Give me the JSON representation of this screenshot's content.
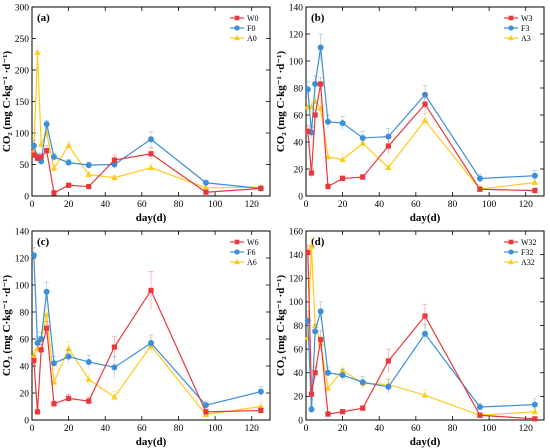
{
  "figure": {
    "xlabel": "day(d)",
    "ylabel": "CO₂ (mg C·kg⁻¹ ·d⁻¹)"
  },
  "chart_data": [
    {
      "type": "line",
      "panel_label": "(a)",
      "xlabel": "day(d)",
      "ylabel": "CO₂ (mg C·kg⁻¹ ·d⁻¹)",
      "xlim": [
        0,
        130
      ],
      "ylim": [
        0,
        300
      ],
      "xticks": [
        0,
        20,
        40,
        60,
        80,
        100,
        120
      ],
      "yticks": [
        0,
        50,
        100,
        150,
        200,
        250,
        300
      ],
      "legend_position": "top-right",
      "x": [
        1,
        3,
        5,
        8,
        12,
        20,
        31,
        45,
        65,
        95,
        125
      ],
      "series": [
        {
          "name": "W0",
          "color": "#e8383d",
          "marker": "square",
          "values": [
            65,
            60,
            62,
            72,
            5,
            17,
            15,
            57,
            67,
            6,
            12
          ],
          "errors": [
            6,
            6,
            6,
            8,
            2,
            3,
            3,
            8,
            10,
            3,
            3
          ]
        },
        {
          "name": "F0",
          "color": "#3d8fd8",
          "marker": "circle",
          "values": [
            80,
            62,
            55,
            114,
            62,
            53,
            49,
            50,
            90,
            21,
            12
          ],
          "errors": [
            8,
            6,
            6,
            6,
            6,
            5,
            5,
            6,
            12,
            4,
            4
          ]
        },
        {
          "name": "A0",
          "color": "#ffcc1a",
          "marker": "triangle",
          "values": [
            72,
            228,
            82,
            100,
            44,
            80,
            34,
            29,
            45,
            13,
            14
          ],
          "errors": [
            6,
            10,
            8,
            8,
            6,
            6,
            5,
            4,
            6,
            3,
            3
          ]
        }
      ]
    },
    {
      "type": "line",
      "panel_label": "(b)",
      "xlabel": "day(d)",
      "ylabel": "CO₂ (mg C·kg⁻¹ ·d⁻¹)",
      "xlim": [
        0,
        130
      ],
      "ylim": [
        0,
        140
      ],
      "xticks": [
        0,
        20,
        40,
        60,
        80,
        100,
        120
      ],
      "yticks": [
        0,
        20,
        40,
        60,
        80,
        100,
        120,
        140
      ],
      "legend_position": "top-right",
      "x": [
        1,
        3,
        5,
        8,
        12,
        20,
        31,
        45,
        65,
        95,
        125
      ],
      "series": [
        {
          "name": "W3",
          "color": "#e8383d",
          "marker": "square",
          "values": [
            48,
            17,
            60,
            83,
            7,
            13,
            14,
            37,
            68,
            5,
            4
          ],
          "errors": [
            4,
            3,
            4,
            5,
            2,
            2,
            2,
            6,
            8,
            2,
            2
          ]
        },
        {
          "name": "F3",
          "color": "#3d8fd8",
          "marker": "circle",
          "values": [
            79,
            47,
            83,
            110,
            55,
            54,
            43,
            44,
            75,
            13,
            15
          ],
          "errors": [
            6,
            4,
            6,
            10,
            5,
            5,
            5,
            6,
            7,
            3,
            4
          ]
        },
        {
          "name": "A3",
          "color": "#ffcc1a",
          "marker": "triangle",
          "values": [
            66,
            66,
            70,
            65,
            29,
            27,
            39,
            21,
            56,
            5,
            10
          ],
          "errors": [
            5,
            5,
            5,
            6,
            4,
            4,
            5,
            4,
            5,
            2,
            3
          ]
        }
      ]
    },
    {
      "type": "line",
      "panel_label": "(c)",
      "xlabel": "day(d)",
      "ylabel": "CO₂ (mg C·kg⁻¹ ·d⁻¹)",
      "xlim": [
        0,
        130
      ],
      "ylim": [
        0,
        140
      ],
      "xticks": [
        0,
        20,
        40,
        60,
        80,
        100,
        120
      ],
      "yticks": [
        0,
        20,
        40,
        60,
        80,
        100,
        120,
        140
      ],
      "legend_position": "top-right",
      "x": [
        1,
        3,
        5,
        8,
        12,
        20,
        31,
        45,
        65,
        95,
        125
      ],
      "series": [
        {
          "name": "W6",
          "color": "#e8383d",
          "marker": "square",
          "values": [
            44,
            6,
            52,
            68,
            12,
            16,
            14,
            54,
            96,
            6,
            7
          ],
          "errors": [
            4,
            2,
            4,
            5,
            2,
            3,
            3,
            8,
            14,
            2,
            2
          ]
        },
        {
          "name": "F6",
          "color": "#3d8fd8",
          "marker": "circle",
          "values": [
            122,
            57,
            60,
            95,
            42,
            47,
            43,
            39,
            57,
            11,
            21
          ],
          "errors": [
            6,
            5,
            5,
            7,
            5,
            5,
            5,
            8,
            6,
            3,
            4
          ]
        },
        {
          "name": "A6",
          "color": "#ffcc1a",
          "marker": "triangle",
          "values": [
            48,
            53,
            60,
            78,
            28,
            53,
            30,
            17,
            55,
            4,
            10
          ],
          "errors": [
            4,
            4,
            5,
            6,
            4,
            5,
            4,
            4,
            6,
            2,
            3
          ]
        }
      ]
    },
    {
      "type": "line",
      "panel_label": "(d)",
      "xlabel": "day(d)",
      "ylabel": "CO₂ (mg C·kg⁻¹ ·d⁻¹)",
      "xlim": [
        0,
        130
      ],
      "ylim": [
        0,
        160
      ],
      "xticks": [
        0,
        20,
        40,
        60,
        80,
        100,
        120
      ],
      "yticks": [
        0,
        20,
        40,
        60,
        80,
        100,
        120,
        140,
        160
      ],
      "legend_position": "top-right",
      "x": [
        1,
        3,
        5,
        8,
        12,
        20,
        31,
        45,
        65,
        95,
        125
      ],
      "series": [
        {
          "name": "W32",
          "color": "#e8383d",
          "marker": "square",
          "values": [
            142,
            22,
            40,
            68,
            5,
            7,
            10,
            50,
            88,
            4,
            1
          ],
          "errors": [
            6,
            4,
            5,
            8,
            2,
            2,
            2,
            10,
            10,
            2,
            1
          ]
        },
        {
          "name": "F32",
          "color": "#3d8fd8",
          "marker": "circle",
          "values": [
            84,
            9,
            75,
            92,
            40,
            38,
            32,
            28,
            73,
            11,
            13
          ],
          "errors": [
            8,
            3,
            6,
            8,
            5,
            5,
            5,
            6,
            8,
            3,
            5
          ]
        },
        {
          "name": "A32",
          "color": "#ffcc1a",
          "marker": "triangle",
          "values": [
            70,
            147,
            80,
            65,
            27,
            42,
            31,
            30,
            21,
            4,
            7
          ],
          "errors": [
            6,
            8,
            7,
            6,
            4,
            5,
            4,
            5,
            5,
            2,
            3
          ]
        }
      ]
    }
  ]
}
